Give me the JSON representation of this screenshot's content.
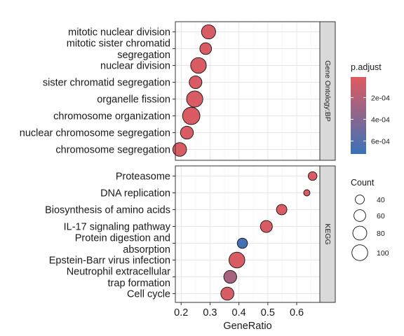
{
  "chart_data": {
    "type": "scatter",
    "xlabel": "GeneRatio",
    "xlim": [
      0.18,
      0.68
    ],
    "xticks": [
      0.2,
      0.3,
      0.4,
      0.5,
      0.6
    ],
    "xtick_labels": [
      "0.2",
      "0.3",
      "0.4",
      "0.5",
      "0.6"
    ],
    "grid": true,
    "facets": [
      {
        "strip": "Gene Ontology:BP",
        "categories": [
          {
            "label": [
              "mitotic nuclear division"
            ],
            "x": 0.295,
            "count": 82,
            "p_adjust": 4e-05
          },
          {
            "label": [
              "mitotic sister chromatid",
              "segregation"
            ],
            "x": 0.285,
            "count": 60,
            "p_adjust": 4e-05
          },
          {
            "label": [
              "nuclear division"
            ],
            "x": 0.26,
            "count": 98,
            "p_adjust": 4e-05
          },
          {
            "label": [
              "sister chromatid segregation"
            ],
            "x": 0.25,
            "count": 68,
            "p_adjust": 4e-05
          },
          {
            "label": [
              "organelle fission"
            ],
            "x": 0.247,
            "count": 105,
            "p_adjust": 4e-05
          },
          {
            "label": [
              "chromosome organization"
            ],
            "x": 0.235,
            "count": 118,
            "p_adjust": 4e-05
          },
          {
            "label": [
              "nuclear chromosome segregation"
            ],
            "x": 0.22,
            "count": 70,
            "p_adjust": 4e-05
          },
          {
            "label": [
              "chromosome segregation"
            ],
            "x": 0.195,
            "count": 78,
            "p_adjust": 4e-05
          }
        ]
      },
      {
        "strip": "KEGG",
        "categories": [
          {
            "label": [
              "Proteasome"
            ],
            "x": 0.655,
            "count": 38,
            "p_adjust": 3e-05
          },
          {
            "label": [
              "DNA replication"
            ],
            "x": 0.635,
            "count": 25,
            "p_adjust": 4e-05
          },
          {
            "label": [
              "Biosynthesis of amino acids"
            ],
            "x": 0.548,
            "count": 50,
            "p_adjust": 4e-05
          },
          {
            "label": [
              "IL-17 signaling pathway"
            ],
            "x": 0.495,
            "count": 62,
            "p_adjust": 4e-05
          },
          {
            "label": [
              "Protein digestion and",
              "absorption"
            ],
            "x": 0.412,
            "count": 48,
            "p_adjust": 0.00068
          },
          {
            "label": [
              "Epstein-Barr virus infection"
            ],
            "x": 0.393,
            "count": 100,
            "p_adjust": 4e-05
          },
          {
            "label": [
              "Neutrophil extracellular",
              "trap formation"
            ],
            "x": 0.37,
            "count": 70,
            "p_adjust": 0.00026
          },
          {
            "label": [
              "Cell cycle"
            ],
            "x": 0.36,
            "count": 72,
            "p_adjust": 4e-05
          }
        ]
      }
    ],
    "color_legend": {
      "title": "p.adjust",
      "range": [
        1e-05,
        0.00072
      ],
      "ticks": [
        0.0002,
        0.0004,
        0.0006
      ],
      "tick_labels": [
        "2e-04",
        "4e-04",
        "6e-04"
      ],
      "low_color": "#e05a5f",
      "high_color": "#3a72b8"
    },
    "size_legend": {
      "title": "Count",
      "values": [
        40,
        60,
        80,
        100
      ],
      "labels": [
        "40",
        "60",
        "80",
        "100"
      ]
    }
  }
}
